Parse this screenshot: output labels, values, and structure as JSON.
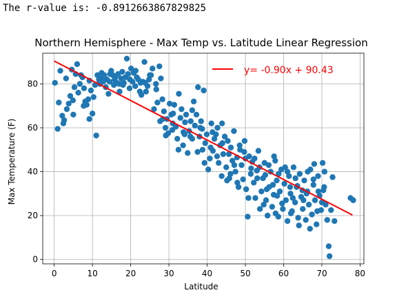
{
  "output": {
    "rvalue_text": "The r-value is: -0.8912663867829825"
  },
  "chart_data": {
    "type": "scatter",
    "title": "Northern Hemisphere - Max Temp vs. Latitude Linear Regression",
    "xlabel": "Latitude",
    "ylabel": "Max Temperature (F)",
    "xlim": [
      -3,
      81
    ],
    "ylim": [
      -2,
      94
    ],
    "xticks": [
      0,
      10,
      20,
      30,
      40,
      50,
      60,
      70,
      80
    ],
    "yticks": [
      0,
      20,
      40,
      60,
      80
    ],
    "grid": true,
    "legend_position": "top-right",
    "colors": {
      "points": "#1f77b4",
      "line": "#ff0000"
    },
    "regression": {
      "label": "y= -0.90x + 90.43",
      "slope": -0.9,
      "intercept": 90.43,
      "x_range": [
        0,
        78
      ]
    },
    "points": [
      [
        0.2,
        80.5
      ],
      [
        0.9,
        59.5
      ],
      [
        1.2,
        71.5
      ],
      [
        1.6,
        86
      ],
      [
        2.1,
        65.5
      ],
      [
        2.6,
        63.5
      ],
      [
        3.1,
        82.5
      ],
      [
        3.3,
        68.5
      ],
      [
        3.8,
        71
      ],
      [
        4.2,
        74.5
      ],
      [
        4.6,
        86.5
      ],
      [
        5.0,
        66
      ],
      [
        5.3,
        78.5
      ],
      [
        5.6,
        84.5
      ],
      [
        6.0,
        89
      ],
      [
        6.3,
        76
      ],
      [
        6.7,
        80
      ],
      [
        7.0,
        84
      ],
      [
        7.4,
        83
      ],
      [
        7.8,
        78
      ],
      [
        8.1,
        72
      ],
      [
        8.5,
        70.5
      ],
      [
        8.9,
        73
      ],
      [
        9.2,
        81.5
      ],
      [
        9.6,
        77
      ],
      [
        10.0,
        66.5
      ],
      [
        10.3,
        74
      ],
      [
        10.7,
        79.5
      ],
      [
        11.0,
        56.5
      ],
      [
        11.3,
        84
      ],
      [
        11.7,
        82
      ],
      [
        12.0,
        80
      ],
      [
        12.4,
        85
      ],
      [
        12.8,
        81
      ],
      [
        13.1,
        84
      ],
      [
        13.5,
        78.5
      ],
      [
        13.8,
        82
      ],
      [
        14.2,
        75.5
      ],
      [
        14.5,
        81
      ],
      [
        14.9,
        86
      ],
      [
        15.3,
        84
      ],
      [
        15.6,
        79.5
      ],
      [
        16.0,
        83
      ],
      [
        16.4,
        80.5
      ],
      [
        16.7,
        84.5
      ],
      [
        17.1,
        76.5
      ],
      [
        17.5,
        82.5
      ],
      [
        17.8,
        85.5
      ],
      [
        18.2,
        80.5
      ],
      [
        18.6,
        83
      ],
      [
        19.0,
        91.5
      ],
      [
        19.3,
        84.5
      ],
      [
        19.7,
        78
      ],
      [
        20.1,
        87
      ],
      [
        20.5,
        81
      ],
      [
        20.8,
        85
      ],
      [
        21.2,
        79
      ],
      [
        21.6,
        83
      ],
      [
        22.0,
        82
      ],
      [
        22.4,
        76.5
      ],
      [
        22.8,
        75
      ],
      [
        23.2,
        81
      ],
      [
        23.6,
        90
      ],
      [
        24.0,
        76.5
      ],
      [
        24.4,
        79
      ],
      [
        24.8,
        82
      ],
      [
        25.3,
        84
      ],
      [
        25.7,
        87
      ],
      [
        26.1,
        68.5
      ],
      [
        26.6,
        80
      ],
      [
        27.0,
        71.5
      ],
      [
        27.5,
        88
      ],
      [
        27.9,
        82.5
      ],
      [
        28.3,
        73
      ],
      [
        28.7,
        67.5
      ],
      [
        29.1,
        60
      ],
      [
        29.5,
        64
      ],
      [
        29.8,
        57.5
      ],
      [
        30.2,
        71
      ],
      [
        30.6,
        66
      ],
      [
        31.0,
        62
      ],
      [
        31.4,
        70.5
      ],
      [
        31.8,
        60.5
      ],
      [
        32.2,
        55
      ],
      [
        32.6,
        75.5
      ],
      [
        33.0,
        64.5
      ],
      [
        33.3,
        68.5
      ],
      [
        33.7,
        52
      ],
      [
        34.1,
        57
      ],
      [
        34.5,
        66
      ],
      [
        34.9,
        48.5
      ],
      [
        35.3,
        58.5
      ],
      [
        35.7,
        63
      ],
      [
        36.1,
        55
      ],
      [
        36.5,
        72
      ],
      [
        36.8,
        61
      ],
      [
        37.2,
        66
      ],
      [
        37.6,
        78.5
      ],
      [
        38.0,
        56
      ],
      [
        38.4,
        63
      ],
      [
        38.7,
        59.5
      ],
      [
        38.8,
        50
      ],
      [
        39.1,
        77
      ],
      [
        39.5,
        53
      ],
      [
        39.9,
        57
      ],
      [
        40.3,
        41
      ],
      [
        40.7,
        46
      ],
      [
        41.1,
        62
      ],
      [
        41.5,
        49.5
      ],
      [
        41.9,
        55
      ],
      [
        42.3,
        57
      ],
      [
        42.7,
        60
      ],
      [
        43.0,
        44
      ],
      [
        43.4,
        52
      ],
      [
        43.8,
        38
      ],
      [
        44.2,
        48
      ],
      [
        44.6,
        56
      ],
      [
        45.0,
        42
      ],
      [
        45.4,
        54
      ],
      [
        45.8,
        37
      ],
      [
        46.2,
        51
      ],
      [
        46.6,
        45
      ],
      [
        47.0,
        58.5
      ],
      [
        47.4,
        40
      ],
      [
        47.8,
        46.5
      ],
      [
        48.2,
        33
      ],
      [
        48.6,
        50
      ],
      [
        49.0,
        43
      ],
      [
        49.4,
        36.5
      ],
      [
        49.8,
        54
      ],
      [
        50.2,
        32
      ],
      [
        50.6,
        19.5
      ],
      [
        51.0,
        47
      ],
      [
        51.4,
        39
      ],
      [
        51.8,
        44.5
      ],
      [
        52.2,
        35
      ],
      [
        52.6,
        28
      ],
      [
        53.0,
        40.5
      ],
      [
        53.4,
        49.5
      ],
      [
        53.8,
        23
      ],
      [
        54.2,
        31
      ],
      [
        54.6,
        37
      ],
      [
        55.0,
        44
      ],
      [
        55.4,
        27
      ],
      [
        55.8,
        20
      ],
      [
        56.2,
        33
      ],
      [
        56.6,
        40
      ],
      [
        57.0,
        24
      ],
      [
        57.4,
        29.5
      ],
      [
        57.8,
        45
      ],
      [
        58.2,
        36
      ],
      [
        58.6,
        19.5
      ],
      [
        59.0,
        31
      ],
      [
        59.4,
        41
      ],
      [
        59.8,
        23
      ],
      [
        60.2,
        34.5
      ],
      [
        60.6,
        27
      ],
      [
        61.0,
        17.5
      ],
      [
        61.4,
        38
      ],
      [
        61.8,
        30
      ],
      [
        62.2,
        22
      ],
      [
        62.6,
        42
      ],
      [
        63.0,
        26
      ],
      [
        63.4,
        33
      ],
      [
        63.8,
        19
      ],
      [
        64.2,
        39
      ],
      [
        64.6,
        28.5
      ],
      [
        65.0,
        23
      ],
      [
        65.4,
        36
      ],
      [
        65.8,
        18
      ],
      [
        66.2,
        31
      ],
      [
        66.6,
        25
      ],
      [
        67.0,
        41
      ],
      [
        67.4,
        20.5
      ],
      [
        67.8,
        34
      ],
      [
        68.2,
        27
      ],
      [
        68.6,
        16
      ],
      [
        69.0,
        38
      ],
      [
        69.4,
        29
      ],
      [
        69.8,
        22.5
      ],
      [
        70.2,
        44
      ],
      [
        70.6,
        33
      ],
      [
        71.0,
        25
      ],
      [
        71.4,
        18
      ],
      [
        71.8,
        6
      ],
      [
        72.0,
        1.5
      ],
      [
        72.4,
        22.5
      ],
      [
        72.8,
        37.5
      ],
      [
        73.3,
        17.5
      ],
      [
        77.5,
        28
      ],
      [
        78.2,
        27
      ],
      [
        4.9,
        72.5
      ],
      [
        9.2,
        64
      ],
      [
        11.8,
        80.5
      ],
      [
        15.8,
        82
      ],
      [
        17.0,
        80
      ],
      [
        18.0,
        79.5
      ],
      [
        21.3,
        86
      ],
      [
        23.8,
        80.5
      ],
      [
        26.7,
        77.5
      ],
      [
        28.4,
        64
      ],
      [
        29.2,
        56.5
      ],
      [
        30.9,
        59
      ],
      [
        32.5,
        50
      ],
      [
        34.2,
        62.5
      ],
      [
        35.6,
        56
      ],
      [
        37.5,
        49
      ],
      [
        39.3,
        44
      ],
      [
        40.9,
        51
      ],
      [
        42.6,
        47
      ],
      [
        44.0,
        53
      ],
      [
        46.1,
        39
      ],
      [
        47.1,
        43
      ],
      [
        48.5,
        52
      ],
      [
        50.0,
        46
      ],
      [
        51.5,
        41.5
      ],
      [
        53.1,
        37
      ],
      [
        54.8,
        25
      ],
      [
        56.1,
        43
      ],
      [
        57.2,
        34
      ],
      [
        58.7,
        39
      ],
      [
        60.4,
        42
      ],
      [
        61.9,
        21
      ],
      [
        63.1,
        37
      ],
      [
        64.9,
        31.5
      ],
      [
        66.3,
        40
      ],
      [
        68.0,
        43.5
      ],
      [
        69.1,
        31
      ],
      [
        70.0,
        26
      ],
      [
        70.7,
        40
      ],
      [
        64.0,
        15.5
      ],
      [
        66.9,
        14
      ],
      [
        62.4,
        28
      ],
      [
        59.6,
        25.5
      ],
      [
        57.9,
        21
      ],
      [
        55.2,
        38.5
      ],
      [
        52.4,
        46
      ],
      [
        49.7,
        49
      ],
      [
        45.7,
        48
      ],
      [
        43.9,
        62
      ],
      [
        41.4,
        58
      ],
      [
        38.2,
        60
      ],
      [
        36.1,
        68
      ],
      [
        33.8,
        58
      ],
      [
        31.1,
        66.5
      ],
      [
        27.7,
        63
      ],
      [
        25.0,
        84
      ],
      [
        22.6,
        80.5
      ],
      [
        19.8,
        82
      ],
      [
        14.6,
        84.5
      ],
      [
        12.6,
        83
      ],
      [
        7.7,
        70
      ],
      [
        2.4,
        62
      ],
      [
        57.5,
        47
      ],
      [
        61.0,
        40
      ],
      [
        65.2,
        27
      ],
      [
        67.8,
        36.5
      ],
      [
        53.7,
        42
      ],
      [
        47.9,
        35
      ],
      [
        45.2,
        36
      ],
      [
        50.8,
        28
      ],
      [
        68.8,
        22
      ],
      [
        70.4,
        31.5
      ],
      [
        63.6,
        33.5
      ],
      [
        55.6,
        32
      ],
      [
        58.3,
        29
      ],
      [
        61.7,
        33
      ],
      [
        66.0,
        30
      ]
    ]
  }
}
